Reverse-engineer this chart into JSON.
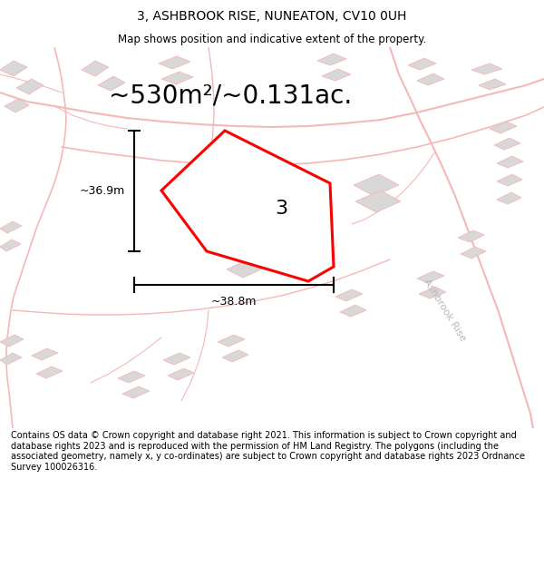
{
  "title": "3, ASHBROOK RISE, NUNEATON, CV10 0UH",
  "subtitle": "Map shows position and indicative extent of the property.",
  "area_label": "~530m²/~0.131ac.",
  "plot_number": "3",
  "dimension_width": "~38.8m",
  "dimension_height": "~36.9m",
  "road_label": "Ashbrook Rise",
  "footer": "Contains OS data © Crown copyright and database right 2021. This information is subject to Crown copyright and database rights 2023 and is reproduced with the permission of HM Land Registry. The polygons (including the associated geometry, namely x, y co-ordinates) are subject to Crown copyright and database rights 2023 Ordnance Survey 100026316.",
  "bg_color": "#ffffff",
  "map_bg": "#ffffff",
  "plot_outline_color": "#ff0000",
  "building_color": "#d8d8d8",
  "road_line_color": "#f5b8b8",
  "title_fontsize": 10,
  "subtitle_fontsize": 8.5,
  "area_fontsize": 20,
  "plot_label_fontsize": 16,
  "dim_fontsize": 9,
  "road_label_fontsize": 8,
  "footer_fontsize": 7
}
